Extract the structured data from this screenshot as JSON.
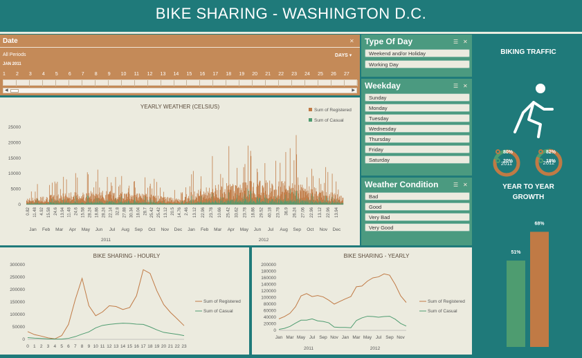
{
  "header": {
    "title": "BIKE SHARING - WASHINGTON D.C."
  },
  "date_slicer": {
    "title": "Date",
    "filter_label": "All Periods",
    "level": "DAYS",
    "month": "JAN 2011",
    "days": [
      "1",
      "2",
      "3",
      "4",
      "5",
      "6",
      "7",
      "8",
      "9",
      "10",
      "11",
      "12",
      "13",
      "14",
      "15",
      "16",
      "17",
      "18",
      "19",
      "20",
      "21",
      "22",
      "23",
      "24",
      "25",
      "26",
      "27"
    ]
  },
  "type_of_day": {
    "title": "Type Of Day",
    "items": [
      "Weekend and/or Holiday",
      "Working Day"
    ]
  },
  "weekday": {
    "title": "Weekday",
    "items": [
      "Sunday",
      "Monday",
      "Tuesday",
      "Wednesday",
      "Thursday",
      "Friday",
      "Saturday"
    ]
  },
  "weather": {
    "title": "Weather Condition",
    "items": [
      "Bad",
      "Good",
      "Very Bad",
      "Very Good"
    ]
  },
  "colors": {
    "registered": "#c07a45",
    "casual": "#4e9c70",
    "teal": "#1f7a7a"
  },
  "traffic": {
    "title": "BIKING TRAFFIC",
    "year_a": "2011",
    "year_b": "2012",
    "a_registered": "80%",
    "a_casual": "20%",
    "b_registered": "82%",
    "b_casual": "18%",
    "a_registered_value": 0.8,
    "b_registered_value": 0.82
  },
  "growth": {
    "title_line1": "YEAR TO YEAR",
    "title_line2": "GROWTH",
    "label_a": "51%",
    "label_b": "68%",
    "value_a": 51,
    "value_b": 68
  },
  "chart_data": [
    {
      "type": "bar",
      "title": "YEARLY WEATHER (CELSIUS)",
      "legend": [
        "Sum of Registered",
        "Sum of Casual"
      ],
      "y_ticks": [
        "25000",
        "20000",
        "15000",
        "10000",
        "5000",
        "0"
      ],
      "ylim": [
        0,
        25000
      ],
      "temp_labels_2011": [
        "0.82",
        "11.48",
        "4.92",
        "15.58",
        "24.6",
        "13.94",
        "11.48",
        "24.6",
        "15.58",
        "28.24",
        "18.86",
        "28.24",
        "22.14",
        "32.8",
        "27.88",
        "30.34",
        "18.04",
        "28.7",
        "25.42",
        "25.42",
        "13.12",
        "20.5",
        "14.76"
      ],
      "temp_labels_2012": [
        "2.46",
        "13.12",
        "22.96",
        "23.78",
        "10.66",
        "25.42",
        "33.62",
        "23.78",
        "18.86",
        "29.52",
        "40.18",
        "23.78",
        "36.9",
        "26.24",
        "27.06",
        "22.96",
        "13.12",
        "22.96",
        "13.94"
      ],
      "months": [
        "Jan",
        "Feb",
        "Mar",
        "Apr",
        "May",
        "Jun",
        "Jul",
        "Aug",
        "Sep",
        "Oct",
        "Nov",
        "Dec"
      ],
      "years": [
        "2011",
        "2012"
      ]
    },
    {
      "type": "line",
      "title": "BIKE SHARING - HOURLY",
      "categories": [
        "0",
        "1",
        "2",
        "3",
        "4",
        "5",
        "6",
        "7",
        "8",
        "9",
        "10",
        "11",
        "12",
        "13",
        "14",
        "15",
        "16",
        "17",
        "18",
        "19",
        "20",
        "21",
        "22",
        "23"
      ],
      "y_ticks": [
        "300000",
        "250000",
        "200000",
        "150000",
        "100000",
        "50000",
        "0"
      ],
      "ylim": [
        0,
        300000
      ],
      "series": [
        {
          "name": "Sum of Registered",
          "values": [
            31000,
            19000,
            13000,
            6000,
            2000,
            15000,
            60000,
            160000,
            245000,
            135000,
            95000,
            110000,
            135000,
            132000,
            120000,
            128000,
            175000,
            280000,
            265000,
            195000,
            140000,
            108000,
            82000,
            55000
          ]
        },
        {
          "name": "Sum of Casual",
          "values": [
            7000,
            4700,
            3400,
            1800,
            900,
            1100,
            4000,
            11000,
            21000,
            30000,
            46000,
            56000,
            60000,
            63000,
            65000,
            64000,
            61000,
            60000,
            50000,
            38000,
            28000,
            24000,
            20000,
            15000
          ]
        }
      ]
    },
    {
      "type": "line",
      "title": "BIKE SHARING - YEARLY",
      "categories": [
        "Jan",
        "Feb",
        "Mar",
        "Apr",
        "May",
        "Jun",
        "Jul",
        "Aug",
        "Sep",
        "Oct",
        "Nov",
        "Dec",
        "Jan",
        "Feb",
        "Mar",
        "Apr",
        "May",
        "Jun",
        "Jul",
        "Aug",
        "Sep",
        "Oct",
        "Nov",
        "Dec"
      ],
      "x_labels": [
        "Jan",
        "Mar",
        "May",
        "Jul",
        "Sep",
        "Nov",
        "Jan",
        "Mar",
        "May",
        "Jul",
        "Sep",
        "Nov"
      ],
      "years": [
        "2011",
        "2012"
      ],
      "y_ticks": [
        "200000",
        "180000",
        "160000",
        "140000",
        "120000",
        "100000",
        "80000",
        "60000",
        "40000",
        "20000",
        "0"
      ],
      "ylim": [
        0,
        200000
      ],
      "series": [
        {
          "name": "Sum of Registered",
          "values": [
            35000,
            42000,
            52000,
            72000,
            105000,
            112000,
            103000,
            106000,
            102000,
            92000,
            80000,
            88000,
            96000,
            103000,
            133000,
            135000,
            150000,
            160000,
            163000,
            172000,
            168000,
            140000,
            105000,
            85000
          ]
        },
        {
          "name": "Sum of Casual",
          "values": [
            3000,
            6000,
            12000,
            22000,
            31000,
            31000,
            35000,
            29000,
            27000,
            23000,
            10000,
            9000,
            9000,
            8000,
            30000,
            38000,
            43000,
            42000,
            40000,
            42000,
            43000,
            34000,
            21000,
            13000
          ]
        }
      ]
    }
  ]
}
